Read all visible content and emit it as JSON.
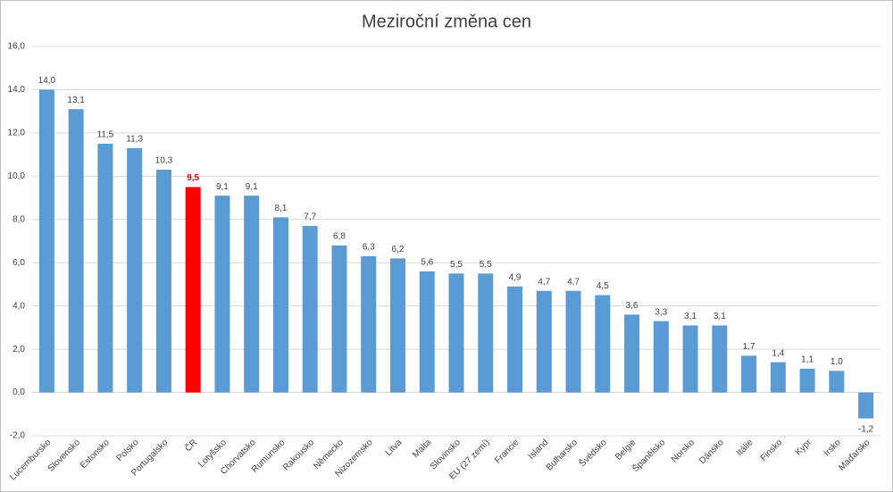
{
  "chart_data": {
    "type": "bar",
    "title": "Meziroční změna cen",
    "categories": [
      "Lucembursko",
      "Slovensko",
      "Estonsko",
      "Polsko",
      "Portugalsko",
      "ČR",
      "Lotyšsko",
      "Chorvatsko",
      "Rumunsko",
      "Rakousko",
      "Německo",
      "Nizozemsko",
      "Litva",
      "Malta",
      "Slovinsko",
      "EU (27 zemí)",
      "Francie",
      "Island",
      "Bulharsko",
      "Švédsko",
      "Belgie",
      "Španělsko",
      "Norsko",
      "Dánsko",
      "Itálie",
      "Finsko",
      "Kypr",
      "Irsko",
      "Maďarsko"
    ],
    "values": [
      14.0,
      13.1,
      11.5,
      11.3,
      10.3,
      9.5,
      9.1,
      9.1,
      8.1,
      7.7,
      6.8,
      6.3,
      6.2,
      5.6,
      5.5,
      5.5,
      4.9,
      4.7,
      4.7,
      4.5,
      3.6,
      3.3,
      3.1,
      3.1,
      1.7,
      1.4,
      1.1,
      1.0,
      -1.2
    ],
    "value_labels": [
      "14,0",
      "13,1",
      "11,5",
      "11,3",
      "10,3",
      "9,5",
      "9,1",
      "9,1",
      "8,1",
      "7,7",
      "6,8",
      "6,3",
      "6,2",
      "5,6",
      "5,5",
      "5,5",
      "4,9",
      "4,7",
      "4,7",
      "4,5",
      "3,6",
      "3,3",
      "3,1",
      "3,1",
      "1,7",
      "1,4",
      "1,1",
      "1,0",
      "-1,2"
    ],
    "color": "#5b9bd5",
    "colors": [
      "#5b9bd5",
      "#5b9bd5",
      "#5b9bd5",
      "#5b9bd5",
      "#5b9bd5",
      "#ff0000",
      "#5b9bd5",
      "#5b9bd5",
      "#5b9bd5",
      "#5b9bd5",
      "#5b9bd5",
      "#5b9bd5",
      "#5b9bd5",
      "#5b9bd5",
      "#5b9bd5",
      "#5b9bd5",
      "#5b9bd5",
      "#5b9bd5",
      "#5b9bd5",
      "#5b9bd5",
      "#5b9bd5",
      "#5b9bd5",
      "#5b9bd5",
      "#5b9bd5",
      "#5b9bd5",
      "#5b9bd5",
      "#5b9bd5",
      "#5b9bd5",
      "#5b9bd5"
    ],
    "ylim": [
      -2,
      16
    ],
    "yticks": [
      {
        "value": -2,
        "label": "-2,0"
      },
      {
        "value": 0,
        "label": "0,0"
      },
      {
        "value": 2,
        "label": "2,0"
      },
      {
        "value": 4,
        "label": "4,0"
      },
      {
        "value": 6,
        "label": "6,0"
      },
      {
        "value": 8,
        "label": "8,0"
      },
      {
        "value": 10,
        "label": "10,0"
      },
      {
        "value": 12,
        "label": "12,0"
      },
      {
        "value": 14,
        "label": "14,0"
      },
      {
        "value": 16,
        "label": "16,0"
      }
    ],
    "grid": true
  }
}
